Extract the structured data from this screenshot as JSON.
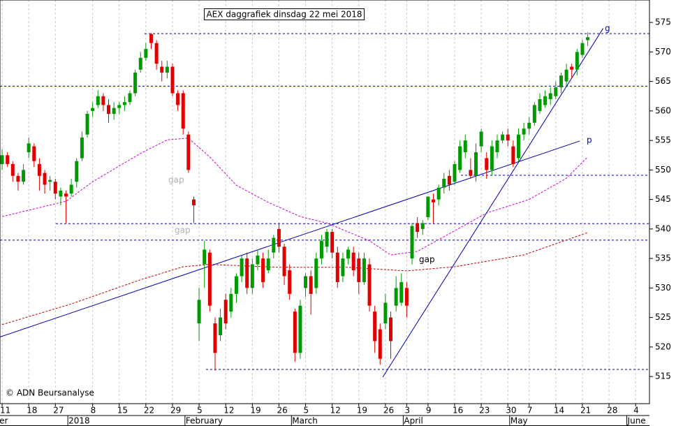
{
  "chart_data": {
    "type": "candlestick",
    "title": "AEX daggrafiek dinsdag 22 mei 2018",
    "credit": "© ADN Beursanalyse",
    "annotations": [
      "gap",
      "gap",
      "gap",
      "g",
      "p"
    ],
    "up_color": "#009a00",
    "down_color": "#e00000",
    "open": [
      551,
      552.5,
      551,
      549,
      548,
      553,
      554,
      551,
      549.5,
      548,
      548,
      545.5,
      546,
      546,
      548,
      552,
      556,
      560,
      561,
      562.5,
      561,
      559.5,
      560.5,
      561,
      561.5,
      563,
      567,
      569,
      573,
      571.5,
      567.5,
      566.5,
      567.5,
      563,
      563,
      556,
      545,
      524,
      534,
      536,
      524,
      522,
      528,
      526,
      529,
      532,
      535,
      530,
      534,
      535,
      533,
      536,
      540,
      537,
      533,
      526,
      519,
      530,
      532,
      530,
      535,
      537,
      539.5,
      536,
      532,
      535,
      536,
      535,
      531,
      534,
      526,
      523,
      524,
      525,
      527,
      527.5,
      530,
      535,
      541,
      540,
      542,
      545,
      545,
      547,
      549,
      548,
      550,
      553,
      550,
      549,
      554,
      552,
      550,
      553,
      555,
      556,
      554,
      552,
      556,
      557,
      558,
      560,
      561,
      562,
      562.5,
      564,
      565,
      567.5,
      567,
      569.5,
      572
    ],
    "high": [
      553.5,
      553,
      551.5,
      549.5,
      551,
      555.5,
      554.5,
      552,
      550,
      549,
      548.5,
      547,
      546.5,
      548.5,
      552,
      556.5,
      560,
      561.5,
      563.5,
      563,
      562,
      561.5,
      561.5,
      562.5,
      563.5,
      567,
      570,
      571.5,
      573.2,
      572,
      568.5,
      568.5,
      568,
      563.5,
      563.5,
      556.5,
      545.5,
      530,
      538,
      536.5,
      525,
      526.5,
      529,
      530,
      532.5,
      535.5,
      536,
      535,
      536.5,
      536,
      536.5,
      539,
      541,
      537.5,
      534,
      526.5,
      528,
      532.5,
      533,
      536,
      539,
      540,
      540,
      537,
      536,
      537,
      537,
      536,
      536,
      535,
      527,
      524,
      529,
      526,
      532,
      532.5,
      531,
      541,
      542,
      541.5,
      545.5,
      546,
      547.5,
      549.5,
      550,
      551.5,
      555,
      556,
      552,
      554.5,
      557,
      553,
      555,
      556,
      556.5,
      557,
      555,
      557,
      558,
      559,
      561.5,
      563,
      563.5,
      564,
      565,
      566.5,
      568,
      568,
      570.5,
      572,
      573.3
    ],
    "low": [
      550,
      550.5,
      548,
      546.5,
      547.5,
      552,
      550.5,
      546.5,
      546,
      546.5,
      545,
      544,
      541,
      545.5,
      547,
      551.5,
      555.5,
      559,
      560.5,
      560,
      558,
      558.5,
      559.5,
      560,
      561,
      562.5,
      566.5,
      568.5,
      570.5,
      567,
      565,
      565.5,
      562.5,
      560,
      556,
      549.5,
      541,
      521,
      530,
      526,
      516,
      521,
      523,
      525,
      527.5,
      531,
      529,
      529,
      533,
      530,
      532.5,
      535,
      536,
      530.5,
      528,
      517.5,
      518,
      528.5,
      525.5,
      529,
      534,
      536,
      535,
      530,
      531,
      534,
      532,
      529,
      530.5,
      526,
      519,
      517,
      523,
      518,
      526,
      527,
      525,
      534,
      538.5,
      539,
      541.5,
      541,
      544,
      546,
      546.5,
      547.5,
      549.5,
      552,
      548.5,
      548,
      553,
      548.5,
      549,
      552,
      554.5,
      554,
      550.5,
      551.5,
      555,
      556,
      557.5,
      559.5,
      560.5,
      561,
      562,
      563,
      564,
      565.5,
      566,
      569,
      571
    ],
    "close": [
      552.5,
      551,
      549,
      548,
      550,
      554.5,
      551.5,
      549,
      547.5,
      548.3,
      546,
      546.5,
      545.5,
      547.5,
      551.5,
      555.5,
      559.5,
      560.5,
      562.5,
      561,
      559.5,
      560.5,
      561,
      561.5,
      563,
      566.5,
      569,
      570.5,
      571.5,
      568,
      566.5,
      567.5,
      563,
      561,
      557,
      550,
      544,
      528,
      536.5,
      527,
      519,
      525,
      524,
      529,
      532,
      535,
      530,
      534,
      535.5,
      531,
      535,
      538.5,
      537,
      532,
      529,
      519,
      527,
      532,
      529,
      535,
      538,
      539.5,
      536,
      531,
      535,
      536.5,
      533,
      531,
      535,
      527,
      521,
      518,
      527.5,
      521,
      530,
      531,
      527,
      540.5,
      539.5,
      541,
      545.5,
      544.5,
      547,
      548.5,
      547.5,
      551,
      554,
      555,
      549,
      553,
      556.5,
      550,
      554,
      555,
      556,
      555,
      551,
      556,
      557,
      558,
      561,
      562,
      562.5,
      563,
      564,
      566,
      567,
      567,
      570,
      571.5,
      572.5
    ],
    "moving_averages": [
      {
        "color": "#d000d0",
        "x": [
          0,
          12,
          17,
          26,
          31,
          35,
          39,
          44,
          50,
          56,
          61,
          69,
          73,
          78,
          85,
          91,
          99,
          106,
          110
        ],
        "y": [
          542.1,
          544.7,
          548,
          552.8,
          555.1,
          555.4,
          552.2,
          547.4,
          544.5,
          542.1,
          541,
          538,
          535.6,
          536.2,
          539.7,
          542.7,
          545,
          548.6,
          552.2
        ]
      },
      {
        "color": "#c00000",
        "x": [
          0,
          13,
          26,
          34,
          39,
          52,
          65,
          76,
          85,
          98,
          110
        ],
        "y": [
          523.8,
          527.3,
          531.4,
          533.6,
          534,
          533.5,
          533.5,
          532.9,
          533.6,
          535.6,
          539.4
        ]
      }
    ],
    "trend_lines": [
      {
        "color": "#0000b0",
        "x": [
          -0.4,
          108.5
        ],
        "y": [
          521.7,
          554.9
        ]
      },
      {
        "color": "#0000b0",
        "x": [
          71.5,
          112.9
        ],
        "y": [
          514.9,
          574
        ]
      }
    ],
    "levels": [
      573.1,
      564.2,
      549.1,
      540.9,
      538.1,
      516.2
    ],
    "xlim": [
      -0.4,
      121.6
    ],
    "ylim": [
      510.4,
      578.8
    ],
    "yticks": [
      515,
      520,
      525,
      530,
      535,
      540,
      545,
      550,
      555,
      560,
      565,
      570,
      575
    ],
    "grid": true,
    "xticks": [
      {
        "value": 0,
        "label": "11"
      },
      {
        "value": 5,
        "label": "18"
      },
      {
        "value": 10,
        "label": "27"
      },
      {
        "value": 17,
        "label": "8"
      },
      {
        "value": 22,
        "label": "15"
      },
      {
        "value": 27,
        "label": "22"
      },
      {
        "value": 32,
        "label": "29"
      },
      {
        "value": 37,
        "label": "5"
      },
      {
        "value": 42,
        "label": "12"
      },
      {
        "value": 47,
        "label": "19"
      },
      {
        "value": 52,
        "label": "26"
      },
      {
        "value": 57,
        "label": "5"
      },
      {
        "value": 62,
        "label": "12"
      },
      {
        "value": 67,
        "label": "19"
      },
      {
        "value": 72,
        "label": "26"
      },
      {
        "value": 76,
        "label": "3"
      },
      {
        "value": 80,
        "label": "9"
      },
      {
        "value": 85,
        "label": "16"
      },
      {
        "value": 90,
        "label": "23"
      },
      {
        "value": 95,
        "label": "30"
      },
      {
        "value": 99,
        "label": "7"
      },
      {
        "value": 104,
        "label": "14"
      },
      {
        "value": 109,
        "label": "21"
      },
      {
        "value": 114,
        "label": "28"
      },
      {
        "value": 119,
        "label": "4"
      }
    ],
    "month_ticks": [
      {
        "value": 0,
        "label": "er"
      },
      {
        "value": 13,
        "label": "2018"
      },
      {
        "value": 35,
        "label": "February"
      },
      {
        "value": 55,
        "label": "March"
      },
      {
        "value": 76,
        "label": "April"
      },
      {
        "value": 96,
        "label": "May"
      },
      {
        "value": 118,
        "label": "June"
      }
    ]
  }
}
